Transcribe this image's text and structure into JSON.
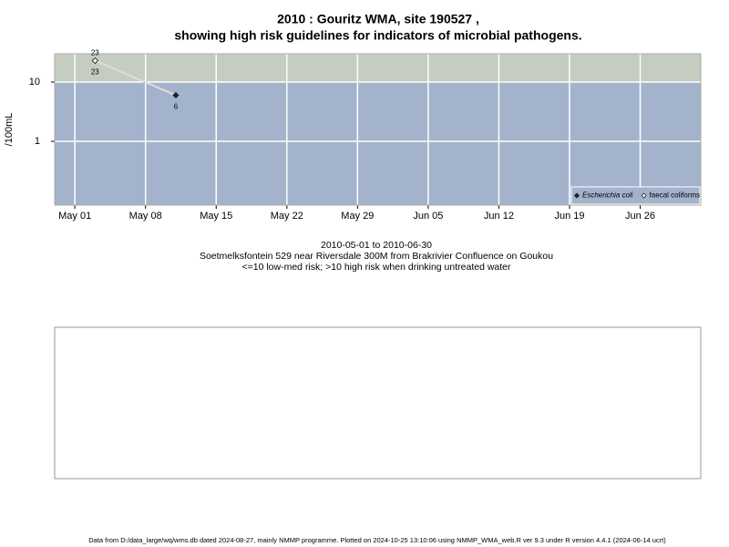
{
  "chart_data": {
    "type": "line",
    "title": "2010 : Gouritz WMA, site 190527 ,",
    "subtitle": "showing high risk guidelines for indicators of microbial pathogens.",
    "y_label": "/100mL",
    "log_y": true,
    "grid": true,
    "threshold": 10,
    "high_color": "#c4cdc0",
    "low_color": "#a3b3cc",
    "x": [
      "2010-05-03",
      "2010-05-11"
    ],
    "xlim": [
      "2010-04-29",
      "2010-07-02"
    ],
    "xticks": [
      {
        "value": "2010-05-01",
        "label": "May 01"
      },
      {
        "value": "2010-05-08",
        "label": "May 08"
      },
      {
        "value": "2010-05-15",
        "label": "May 15"
      },
      {
        "value": "2010-05-22",
        "label": "May 22"
      },
      {
        "value": "2010-05-29",
        "label": "May 29"
      },
      {
        "value": "2010-06-05",
        "label": "Jun 05"
      },
      {
        "value": "2010-06-12",
        "label": "Jun 12"
      },
      {
        "value": "2010-06-19",
        "label": "Jun 19"
      },
      {
        "value": "2010-06-26",
        "label": "Jun 26"
      }
    ],
    "ylim": [
      0.084,
      30
    ],
    "yticks": [
      1,
      10
    ],
    "legend": "bottom-right",
    "series": [
      {
        "name": "Escherichia coli",
        "color": "#222222",
        "line_color": "#dddddd",
        "values": [
          23,
          6
        ]
      },
      {
        "name": "faecal coliforms",
        "color": "#ffffff",
        "values": [
          23,
          null
        ]
      }
    ],
    "notes": [
      "2010-05-01 to 2010-06-30",
      "Soetmelksfontein 529 near Riversdale 300M from Brakrivier Confluence on Goukou",
      "<=10 low-med risk; >10 high risk when drinking untreated water"
    ],
    "footer": "Data from D:/data_large/wq/wms.db dated 2024-08-27, mainly NMMP programme. Plotted on 2024-10-25 13:10:06 using NMMP_WMA_web.R ver 9.3 under R version 4.4.1 (2024-06-14 ucrt)"
  }
}
